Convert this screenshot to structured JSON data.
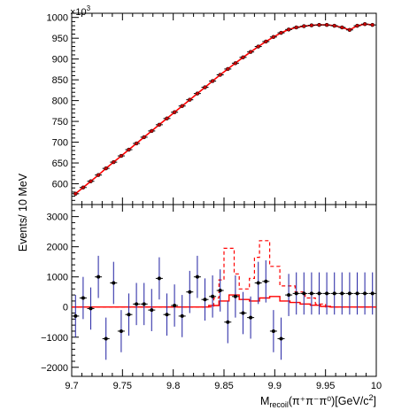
{
  "chart_data": [
    {
      "type": "scatter",
      "panel": "top",
      "xlabel": "",
      "ylabel": "",
      "y_multiplier_label": "×10",
      "y_multiplier_exp": "3",
      "xlim": [
        9.7,
        10.0
      ],
      "ylim": [
        550,
        1010
      ],
      "y_ticks": [
        600,
        650,
        700,
        750,
        800,
        850,
        900,
        950,
        1000
      ],
      "x_ticks": [
        9.7,
        9.75,
        9.8,
        9.85,
        9.9,
        9.95,
        10.0
      ],
      "grid": false,
      "colors": {
        "data": "#000000",
        "data_marker": "#cc0000",
        "fit": "#ff0000"
      },
      "series": [
        {
          "style": "points",
          "x": [
            9.70375,
            9.71125,
            9.71875,
            9.72625,
            9.73375,
            9.74125,
            9.74875,
            9.75625,
            9.76375,
            9.77125,
            9.77875,
            9.78625,
            9.79375,
            9.80125,
            9.80875,
            9.81625,
            9.82375,
            9.83125,
            9.83875,
            9.84625,
            9.85375,
            9.86125,
            9.86875,
            9.87625,
            9.88375,
            9.89125,
            9.89875,
            9.90625,
            9.91375,
            9.92125,
            9.92875,
            9.93625,
            9.94375,
            9.95125,
            9.95875,
            9.96625,
            9.97375,
            9.98125,
            9.98875,
            9.99625
          ],
          "y": [
            576,
            591,
            606,
            621,
            637,
            652,
            667,
            682,
            697,
            712,
            727,
            742,
            757,
            772,
            787,
            802,
            817,
            832,
            847,
            862,
            876,
            890,
            904,
            917,
            930,
            942,
            953,
            963,
            971,
            976,
            979,
            981,
            982,
            982,
            980,
            976,
            970,
            980,
            984,
            982
          ]
        },
        {
          "style": "line",
          "x": [
            9.70375,
            9.71125,
            9.71875,
            9.72625,
            9.73375,
            9.74125,
            9.74875,
            9.75625,
            9.76375,
            9.77125,
            9.77875,
            9.78625,
            9.79375,
            9.80125,
            9.80875,
            9.81625,
            9.82375,
            9.83125,
            9.83875,
            9.84625,
            9.85375,
            9.86125,
            9.86875,
            9.87625,
            9.88375,
            9.89125,
            9.89875,
            9.90625,
            9.91375,
            9.92125,
            9.92875,
            9.93625,
            9.94375,
            9.95125,
            9.95875,
            9.96625,
            9.97375,
            9.98125,
            9.98875,
            9.99625
          ],
          "y": [
            576,
            591,
            606,
            621,
            637,
            652,
            667,
            682,
            697,
            712,
            727,
            742,
            757,
            772,
            787,
            802,
            817,
            832,
            847,
            862,
            876,
            890,
            904,
            917,
            930,
            942,
            953,
            963,
            971,
            976,
            979,
            981,
            982,
            982,
            980,
            976,
            970,
            980,
            984,
            982
          ]
        }
      ]
    },
    {
      "type": "scatter",
      "panel": "bottom",
      "xlabel_main": "M",
      "xlabel_sub": "recoil",
      "xlabel_rest": "(π⁺π⁻π⁰)[GeV/c",
      "xlabel_sup": "2",
      "xlabel_end": "]",
      "ylabel": "Events/ 10 MeV",
      "xlim": [
        9.7,
        10.0
      ],
      "ylim": [
        -2300,
        3400
      ],
      "x_ticks": [
        9.7,
        9.75,
        9.8,
        9.85,
        9.9,
        9.95,
        10.0
      ],
      "x_tick_labels": [
        "9.7",
        "9.75",
        "9.8",
        "9.85",
        "9.9",
        "9.95",
        "10"
      ],
      "y_ticks": [
        -2000,
        -1000,
        0,
        1000,
        2000,
        3000
      ],
      "y_tick_labels": [
        "−2000",
        "−1000",
        "0",
        "1000",
        "2000",
        "3000"
      ],
      "grid": false,
      "colors": {
        "data": "#3333aa",
        "marker": "#000000",
        "fit_solid": "#ff0000",
        "fit_dashed": "#ff0000"
      },
      "series": [
        {
          "style": "errorbar",
          "x": [
            9.70375,
            9.71125,
            9.71875,
            9.72625,
            9.73375,
            9.74125,
            9.74875,
            9.75625,
            9.76375,
            9.77125,
            9.77875,
            9.78625,
            9.79375,
            9.80125,
            9.80875,
            9.81625,
            9.82375,
            9.83125,
            9.83875,
            9.84625,
            9.85375,
            9.86125,
            9.86875,
            9.87625,
            9.88375,
            9.89125,
            9.89875,
            9.90625,
            9.91375,
            9.92125,
            9.92875,
            9.93625,
            9.94375,
            9.95125,
            9.95875,
            9.96625,
            9.97375,
            9.98125,
            9.98875,
            9.99625
          ],
          "y": [
            -300,
            300,
            -50,
            1000,
            -1050,
            800,
            -800,
            -250,
            100,
            100,
            -100,
            950,
            -250,
            50,
            -300,
            500,
            1000,
            250,
            350,
            550,
            -500,
            350,
            -200,
            -350,
            800,
            850,
            -800,
            -1050,
            400,
            450,
            450,
            450,
            450,
            450,
            450,
            450,
            450,
            450,
            450,
            450
          ],
          "yerr": [
            700,
            700,
            700,
            700,
            700,
            700,
            700,
            700,
            700,
            700,
            700,
            700,
            700,
            700,
            700,
            700,
            700,
            700,
            700,
            700,
            700,
            700,
            700,
            700,
            700,
            700,
            700,
            700,
            700,
            700,
            700,
            700,
            700,
            700,
            700,
            700,
            700,
            700,
            700,
            700
          ]
        },
        {
          "style": "step_solid",
          "x": [
            9.7,
            9.835,
            9.845,
            9.855,
            9.865,
            9.875,
            9.885,
            9.895,
            9.905,
            9.915,
            9.925,
            9.935,
            9.945,
            9.955,
            10.0
          ],
          "y": [
            0,
            50,
            200,
            400,
            250,
            200,
            300,
            350,
            200,
            150,
            100,
            60,
            20,
            0,
            0
          ]
        },
        {
          "style": "step_dashed",
          "x": [
            9.7,
            9.84,
            9.845,
            9.85,
            9.86,
            9.865,
            9.875,
            9.88,
            9.885,
            9.895,
            9.905,
            9.91,
            9.92,
            9.93,
            9.94,
            9.95,
            10.0
          ],
          "y": [
            0,
            300,
            900,
            1950,
            1100,
            600,
            950,
            1650,
            2200,
            1350,
            700,
            700,
            500,
            300,
            100,
            0,
            0
          ]
        }
      ]
    }
  ]
}
